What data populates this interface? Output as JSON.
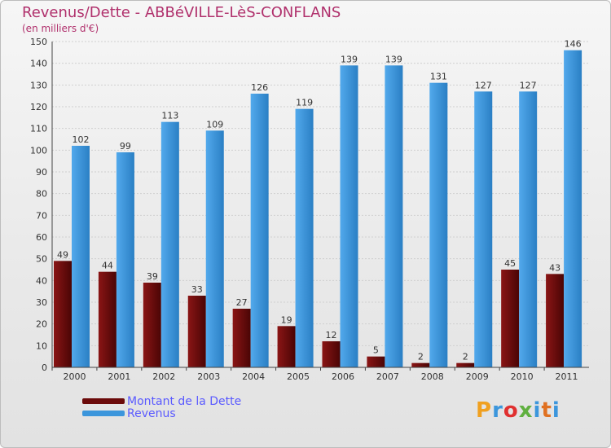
{
  "title": "Revenus/Dette - ABBéVILLE-LèS-CONFLANS",
  "subtitle": "(en milliers d'€)",
  "logo_text": "Proxiti",
  "colors": {
    "dette": "#6b0a0a",
    "revenus": "#3c96dc",
    "title": "#b0306c",
    "legend_text": "#5a5aff"
  },
  "chart_data": {
    "type": "bar",
    "categories": [
      "2000",
      "2001",
      "2002",
      "2003",
      "2004",
      "2005",
      "2006",
      "2007",
      "2008",
      "2009",
      "2010",
      "2011"
    ],
    "series": [
      {
        "name": "Montant de la Dette",
        "values": [
          49,
          44,
          39,
          33,
          27,
          19,
          12,
          5,
          2,
          2,
          45,
          43
        ]
      },
      {
        "name": "Revenus",
        "values": [
          102,
          99,
          113,
          109,
          126,
          119,
          139,
          139,
          131,
          127,
          127,
          146
        ]
      }
    ],
    "ylim": [
      0,
      150
    ],
    "yticks": [
      0,
      10,
      20,
      30,
      40,
      50,
      60,
      70,
      80,
      90,
      100,
      110,
      120,
      130,
      140,
      150
    ],
    "grid": true,
    "legend": "bottom-left"
  }
}
